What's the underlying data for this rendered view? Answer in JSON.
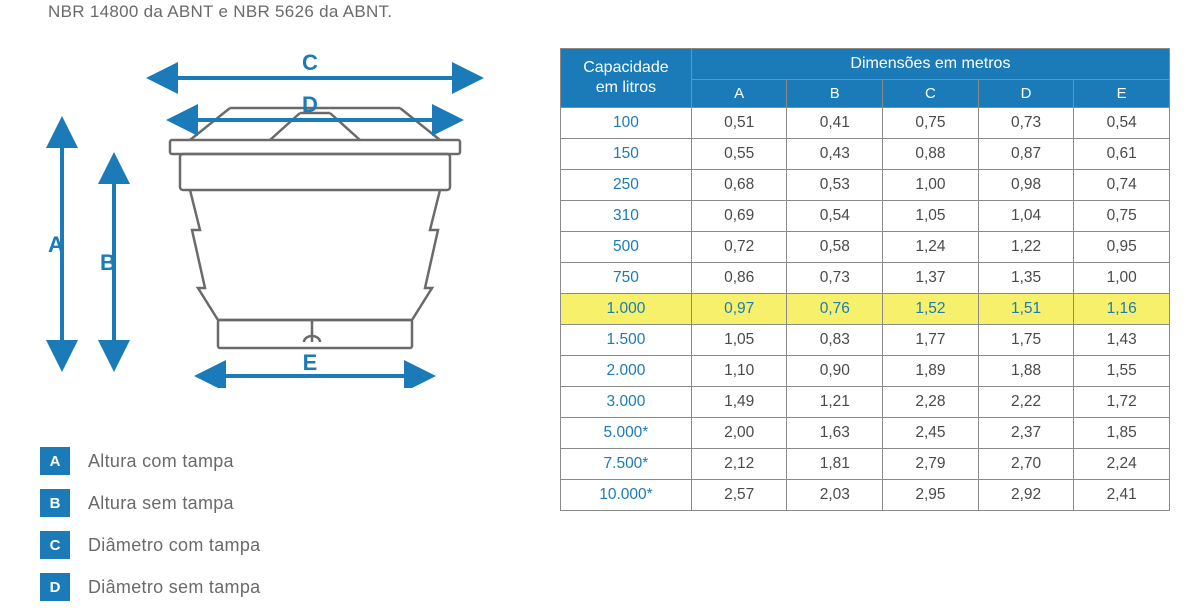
{
  "top_text": "NBR 14800 da ABNT e NBR 5626 da ABNT.",
  "diagram": {
    "labels": {
      "A": "A",
      "B": "B",
      "C": "C",
      "D": "D",
      "E": "E"
    },
    "arrow_color": "#1a7bb8",
    "tank_stroke": "#6a6a6a",
    "label_font_size": 22
  },
  "legend": {
    "badge_bg": "#1a7bb8",
    "items": [
      {
        "letter": "A",
        "text": "Altura com tampa"
      },
      {
        "letter": "B",
        "text": "Altura sem tampa"
      },
      {
        "letter": "C",
        "text": "Diâmetro com tampa"
      },
      {
        "letter": "D",
        "text": "Diâmetro sem tampa"
      }
    ]
  },
  "table": {
    "header_bg": "#1a7bb8",
    "header_fg": "#ffffff",
    "border_color": "#8a8a8a",
    "highlight_bg": "#f7f06a",
    "highlight_fg": "#1a7bb8",
    "cap_header_line1": "Capacidade",
    "cap_header_line2": "em litros",
    "dim_header": "Dimensões em metros",
    "sub_headers": [
      "A",
      "B",
      "C",
      "D",
      "E"
    ],
    "highlight_index": 6,
    "rows": [
      {
        "cap": "100",
        "vals": [
          "0,51",
          "0,41",
          "0,75",
          "0,73",
          "0,54"
        ]
      },
      {
        "cap": "150",
        "vals": [
          "0,55",
          "0,43",
          "0,88",
          "0,87",
          "0,61"
        ]
      },
      {
        "cap": "250",
        "vals": [
          "0,68",
          "0,53",
          "1,00",
          "0,98",
          "0,74"
        ]
      },
      {
        "cap": "310",
        "vals": [
          "0,69",
          "0,54",
          "1,05",
          "1,04",
          "0,75"
        ]
      },
      {
        "cap": "500",
        "vals": [
          "0,72",
          "0,58",
          "1,24",
          "1,22",
          "0,95"
        ]
      },
      {
        "cap": "750",
        "vals": [
          "0,86",
          "0,73",
          "1,37",
          "1,35",
          "1,00"
        ]
      },
      {
        "cap": "1.000",
        "vals": [
          "0,97",
          "0,76",
          "1,52",
          "1,51",
          "1,16"
        ]
      },
      {
        "cap": "1.500",
        "vals": [
          "1,05",
          "0,83",
          "1,77",
          "1,75",
          "1,43"
        ]
      },
      {
        "cap": "2.000",
        "vals": [
          "1,10",
          "0,90",
          "1,89",
          "1,88",
          "1,55"
        ]
      },
      {
        "cap": "3.000",
        "vals": [
          "1,49",
          "1,21",
          "2,28",
          "2,22",
          "1,72"
        ]
      },
      {
        "cap": "5.000*",
        "vals": [
          "2,00",
          "1,63",
          "2,45",
          "2,37",
          "1,85"
        ]
      },
      {
        "cap": "7.500*",
        "vals": [
          "2,12",
          "1,81",
          "2,79",
          "2,70",
          "2,24"
        ]
      },
      {
        "cap": "10.000*",
        "vals": [
          "2,57",
          "2,03",
          "2,95",
          "2,92",
          "2,41"
        ]
      }
    ]
  }
}
